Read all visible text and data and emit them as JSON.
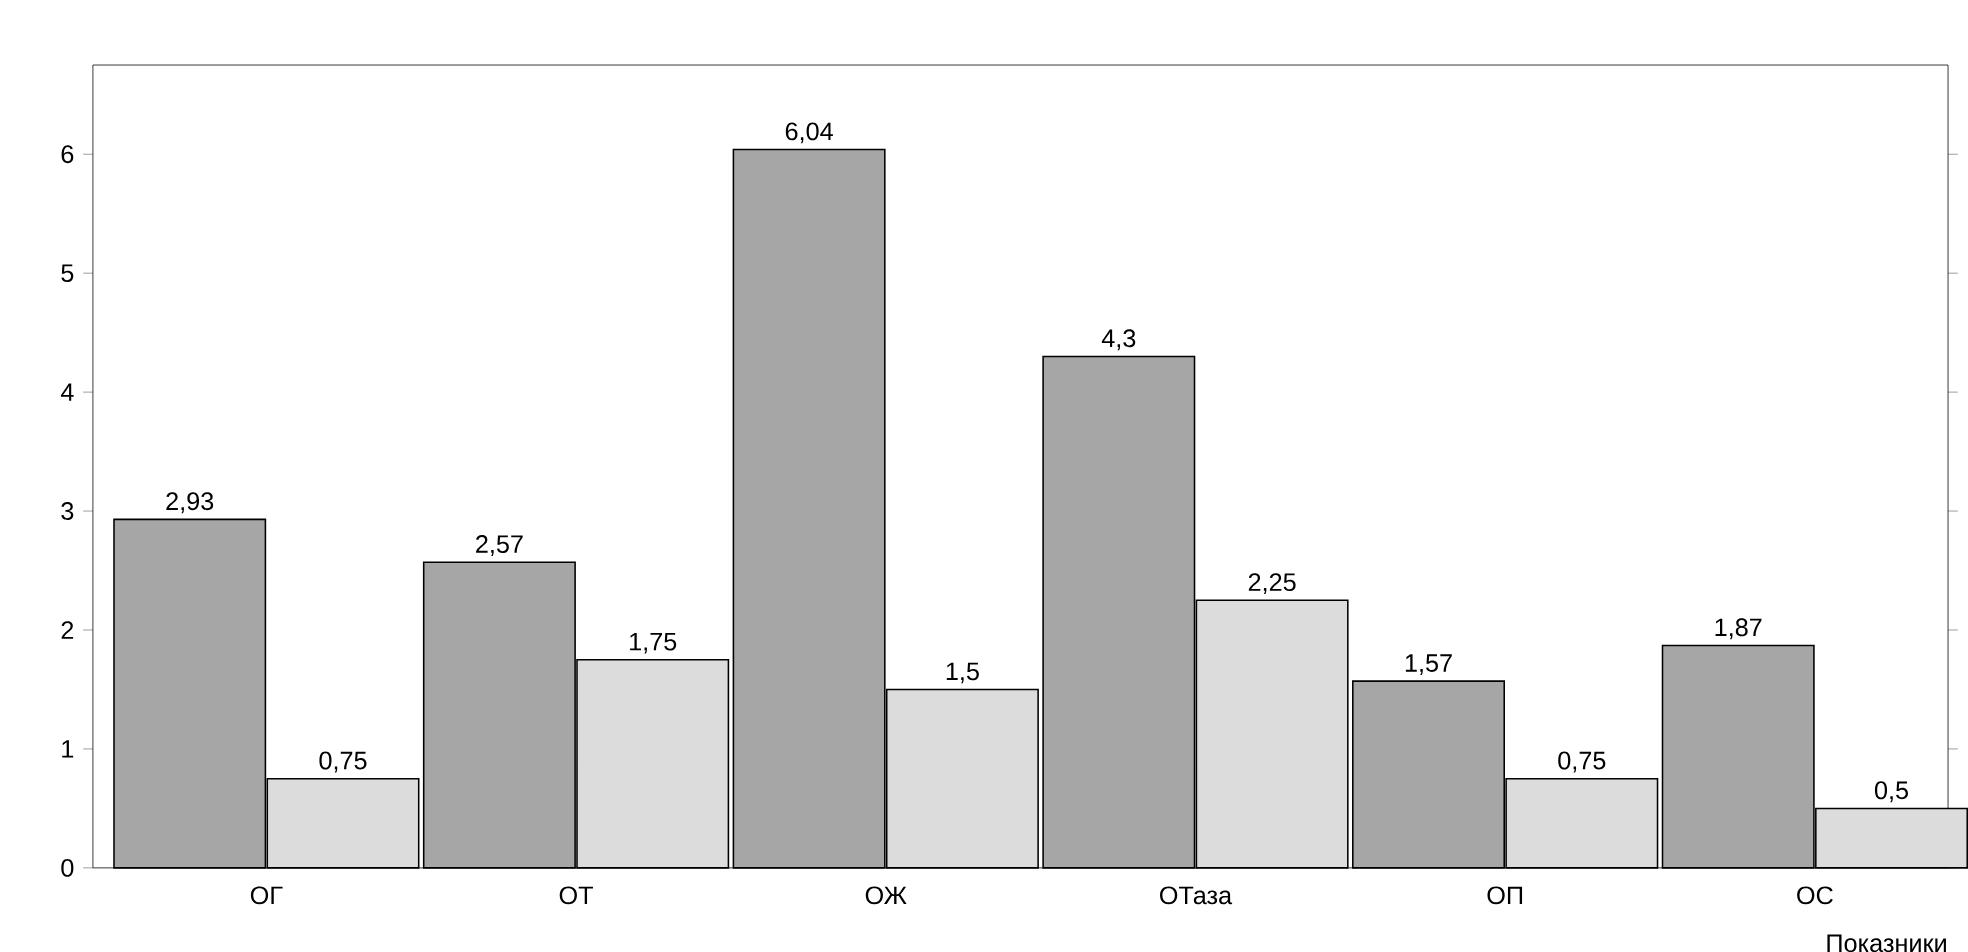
{
  "chart_data": {
    "type": "bar",
    "xlabel": "Показники",
    "categories": [
      "ОГ",
      "ОТ",
      "ОЖ",
      "ОТаза",
      "ОП",
      "ОС"
    ],
    "series": [
      {
        "color": "#a6a6a6",
        "values": [
          2.93,
          2.57,
          6.04,
          4.3,
          1.57,
          1.87
        ],
        "value_labels": [
          "2,93",
          "2,57",
          "6,04",
          "4,3",
          "1,57",
          "1,87"
        ]
      },
      {
        "color": "#dcdcdc",
        "values": [
          0.75,
          1.75,
          1.5,
          2.25,
          0.75,
          0.5
        ],
        "value_labels": [
          "0,75",
          "1,75",
          "1,5",
          "2,25",
          "0,75",
          "0,5"
        ]
      }
    ],
    "ylim": [
      0,
      6.75
    ],
    "yticks": [
      0,
      1,
      2,
      3,
      4,
      5,
      6
    ],
    "grid": false
  }
}
